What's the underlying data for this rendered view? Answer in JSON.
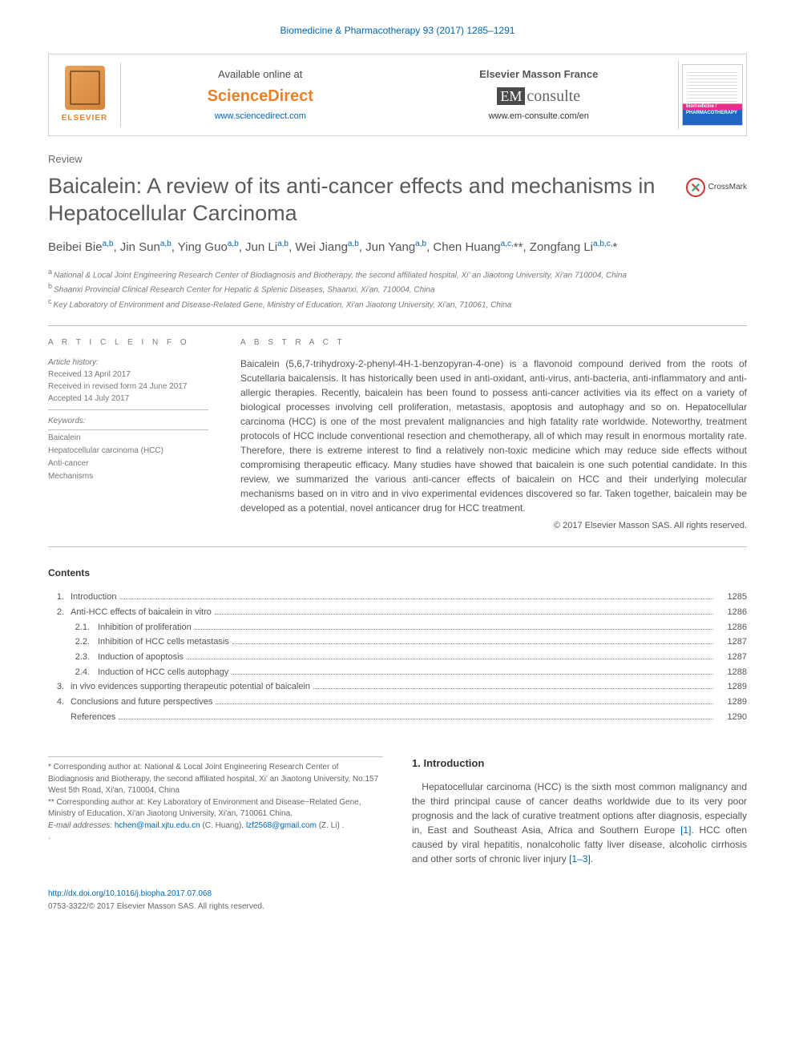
{
  "journal_header": {
    "name": "Biomedicine & Pharmacotherapy",
    "vol": "93 (2017) 1285–1291"
  },
  "top": {
    "elsevier": "ELSEVIER",
    "available": "Available online at",
    "sd": "ScienceDirect",
    "sd_url": "www.sciencedirect.com",
    "emf": "Elsevier Masson France",
    "em": "EM",
    "consulte": "consulte",
    "em_url": "www.em-consulte.com/en",
    "cover_label": "biomedicine / PHARMACOTHERAPY"
  },
  "colors": {
    "link": "#0066b3",
    "accent_orange": "#e8812b",
    "text_gray": "#555555",
    "light_gray": "#777777",
    "border": "#c0c0c0",
    "crossmark_red": "#cc3333",
    "crossmark_green": "#33aa77",
    "cover_pink": "#e62e8a",
    "cover_blue": "#2166c4"
  },
  "typography": {
    "title_fontsize": 27,
    "authors_fontsize": 15,
    "body_fontsize": 12,
    "small_fontsize": 10,
    "section_head_letterspacing": 4
  },
  "article": {
    "type": "Review",
    "title": "Baicalein: A review of its anti-cancer effects and mechanisms in Hepatocellular Carcinoma",
    "crossmark": "CrossMark",
    "authors_html": "Beibei Bie<sup>a,b</sup>, Jin Sun<sup>a,b</sup>, Ying Guo<sup>a,b</sup>, Jun Li<sup>a,b</sup>, Wei Jiang<sup>a,b</sup>, Jun Yang<sup>a,b</sup>, Chen Huang<sup>a,c,</sup>**, Zongfang Li<sup>a,b,c,</sup>*",
    "affiliations": {
      "a": "National & Local Joint Engineering Research Center of Biodiagnosis and Biotherapy, the second affiliated hospital, Xi' an Jiaotong University, Xi'an 710004, China",
      "b": "Shaanxi Provincial Clinical Research Center for Hepatic & Splenic Diseases, Shaanxi, Xi'an, 710004, China",
      "c": "Key Laboratory of Environment and Disease-Related Gene, Ministry of Education, Xi'an Jiaotong University, Xi'an, 710061, China"
    }
  },
  "info": {
    "head": "A R T I C L E   I N F O",
    "history_label": "Article history:",
    "received": "Received 13 April 2017",
    "revised": "Received in revised form 24 June 2017",
    "accepted": "Accepted 14 July 2017",
    "kw_head": "Keywords:",
    "keywords": [
      "Baicalein",
      "Hepatocellular carcinoma (HCC)",
      "Anti-cancer",
      "Mechanisms"
    ]
  },
  "abstract": {
    "head": "A B S T R A C T",
    "text": "Baicalein (5,6,7-trihydroxy-2-phenyl-4H-1-benzopyran-4-one) is a flavonoid compound derived from the roots of Scutellaria baicalensis. It has historically been used in anti-oxidant, anti-virus, anti-bacteria, anti-inflammatory and anti-allergic therapies. Recently, baicalein has been found to possess anti-cancer activities via its effect on a variety of biological processes involving cell proliferation, metastasis, apoptosis and autophagy and so on. Hepatocellular carcinoma (HCC) is one of the most prevalent malignancies and high fatality rate worldwide. Noteworthy, treatment protocols of HCC include conventional resection and chemotherapy, all of which may result in enormous mortality rate. Therefore, there is extreme interest to find a relatively non-toxic medicine which may reduce side effects without compromising therapeutic efficacy. Many studies have showed that baicalein is one such potential candidate. In this review, we summarized the various anti-cancer effects of baicalein on HCC and their underlying molecular mechanisms based on in vitro and in vivo experimental evidences discovered so far. Taken together, baicalein may be developed as a potential, novel anticancer drug for HCC treatment.",
    "copyright": "© 2017 Elsevier Masson SAS. All rights reserved."
  },
  "contents": {
    "head": "Contents",
    "items": [
      {
        "num": "1.",
        "title": "Introduction",
        "page": "1285",
        "level": 1
      },
      {
        "num": "2.",
        "title": "Anti-HCC effects of baicalein in vitro",
        "page": "1286",
        "level": 1
      },
      {
        "num": "2.1.",
        "title": "Inhibition of proliferation",
        "page": "1286",
        "level": 2
      },
      {
        "num": "2.2.",
        "title": "Inhibition of HCC cells metastasis",
        "page": "1287",
        "level": 2
      },
      {
        "num": "2.3.",
        "title": "Induction of apoptosis",
        "page": "1287",
        "level": 2
      },
      {
        "num": "2.4.",
        "title": "Induction of HCC cells autophagy",
        "page": "1288",
        "level": 2
      },
      {
        "num": "3.",
        "title": "in vivo evidences supporting therapeutic potential of baicalein",
        "page": "1289",
        "level": 1
      },
      {
        "num": "4.",
        "title": "Conclusions and future perspectives",
        "page": "1289",
        "level": 1
      },
      {
        "num": "",
        "title": "References",
        "page": "1290",
        "level": 1
      }
    ]
  },
  "intro": {
    "head": "1. Introduction",
    "p1": "Hepatocellular carcinoma (HCC) is the sixth most common malignancy and the third principal cause of cancer deaths worldwide due to its very poor prognosis and the lack of curative treatment options after diagnosis, especially in, East and Southeast Asia, Africa and Southern Europe [1]. HCC often caused by viral hepatitis, nonalcoholic fatty liver disease, alcoholic cirrhosis and other sorts of chronic liver injury [1–3]."
  },
  "footnotes": {
    "c1": "* Corresponding author at: National & Local Joint Engineering Research Center of Biodiagnosis and Biotherapy, the second affiliated hospital, Xi' an Jiaotong University, No.157 West 5th Road, Xi'an, 710004, China",
    "c2": "** Corresponding author at: Key Laboratory of Environment and Disease−Related Gene, Ministry of Education, Xi'an Jiaotong University, Xi'an, 710061 China.",
    "email_label": "E-mail addresses:",
    "email1": "hchen@mail.xjtu.edu.cn",
    "email1_who": "(C. Huang),",
    "email2": "lzf2568@gmail.com",
    "email2_who": "(Z. Li)"
  },
  "footer": {
    "doi": "http://dx.doi.org/10.1016/j.biopha.2017.07.068",
    "issn_copy": "0753-3322/© 2017 Elsevier Masson SAS. All rights reserved."
  }
}
